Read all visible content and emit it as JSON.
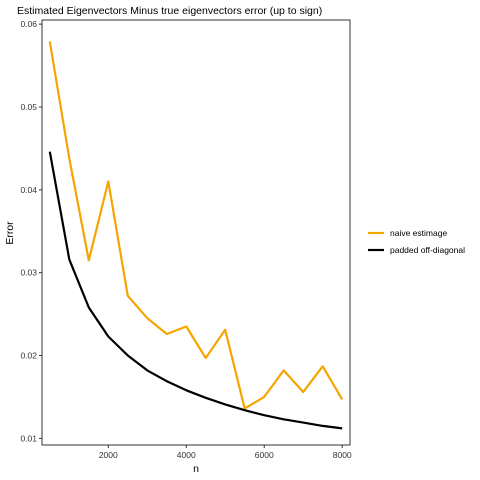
{
  "chart_data": {
    "type": "line",
    "title": "Estimated Eigenvectors Minus true eigenvectors error (up to sign)",
    "xlabel": "n",
    "ylabel": "Error",
    "xlim": [
      300,
      8200
    ],
    "ylim": [
      0.0092,
      0.0605
    ],
    "xticks": [
      2000,
      4000,
      6000,
      8000
    ],
    "yticks": [
      0.01,
      0.02,
      0.03,
      0.04,
      0.05,
      0.06
    ],
    "x": [
      500,
      1000,
      1500,
      2000,
      2500,
      3000,
      3500,
      4000,
      4500,
      5000,
      5500,
      6000,
      6500,
      7000,
      7500,
      8000
    ],
    "series": [
      {
        "name": "naive estimage",
        "color": "#f5a500",
        "values": [
          0.0579,
          0.0438,
          0.0315,
          0.041,
          0.0272,
          0.0245,
          0.0226,
          0.0235,
          0.0197,
          0.0231,
          0.0136,
          0.015,
          0.0182,
          0.0156,
          0.0187,
          0.0147
        ]
      },
      {
        "name": "padded off-diagonal",
        "color": "#000000",
        "values": [
          0.0446,
          0.0316,
          0.0258,
          0.0223,
          0.02,
          0.0182,
          0.0169,
          0.0158,
          0.0149,
          0.0141,
          0.0134,
          0.0128,
          0.0123,
          0.0119,
          0.0115,
          0.0112
        ]
      }
    ],
    "grid": false,
    "legend_position": "right"
  }
}
